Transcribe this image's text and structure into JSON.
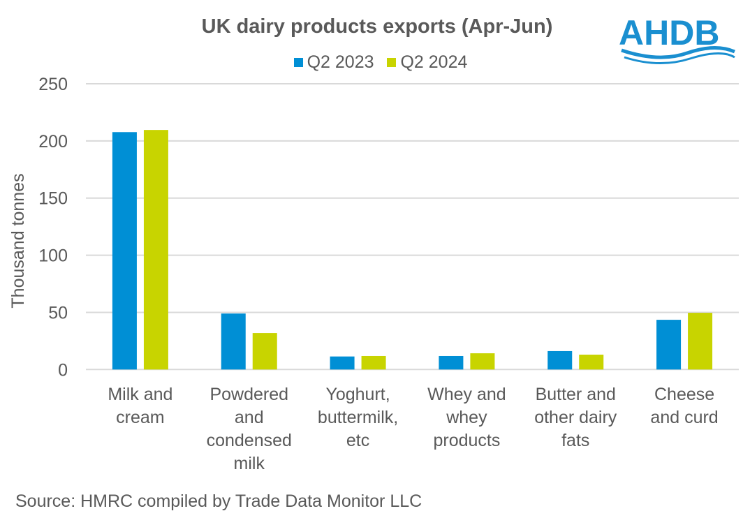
{
  "chart_data": {
    "type": "bar",
    "title": "UK dairy products exports (Apr-Jun)",
    "xlabel": "",
    "ylabel": "Thousand tonnes",
    "ylim": [
      0,
      250
    ],
    "yticks": [
      0,
      50,
      100,
      150,
      200,
      250
    ],
    "grid": true,
    "legend_position": "top",
    "categories": [
      [
        "Milk and",
        "cream"
      ],
      [
        "Powdered",
        "and",
        "condensed",
        "milk"
      ],
      [
        "Yoghurt,",
        "buttermilk,",
        "etc"
      ],
      [
        "Whey and",
        "whey",
        "products"
      ],
      [
        "Butter and",
        "other dairy",
        "fats"
      ],
      [
        "Cheese",
        "and curd"
      ]
    ],
    "series": [
      {
        "name": "Q2 2023",
        "color": "#008fd5",
        "values": [
          207.7,
          49.0,
          11.4,
          11.8,
          16.1,
          43.5
        ]
      },
      {
        "name": "Q2 2024",
        "color": "#c8d400",
        "values": [
          209.6,
          31.9,
          11.8,
          14.2,
          13.0,
          49.6
        ]
      }
    ]
  },
  "logo": {
    "text": "AHDB",
    "color": "#1a8fd0"
  },
  "source": "Source: HMRC compiled by Trade Data Monitor LLC"
}
